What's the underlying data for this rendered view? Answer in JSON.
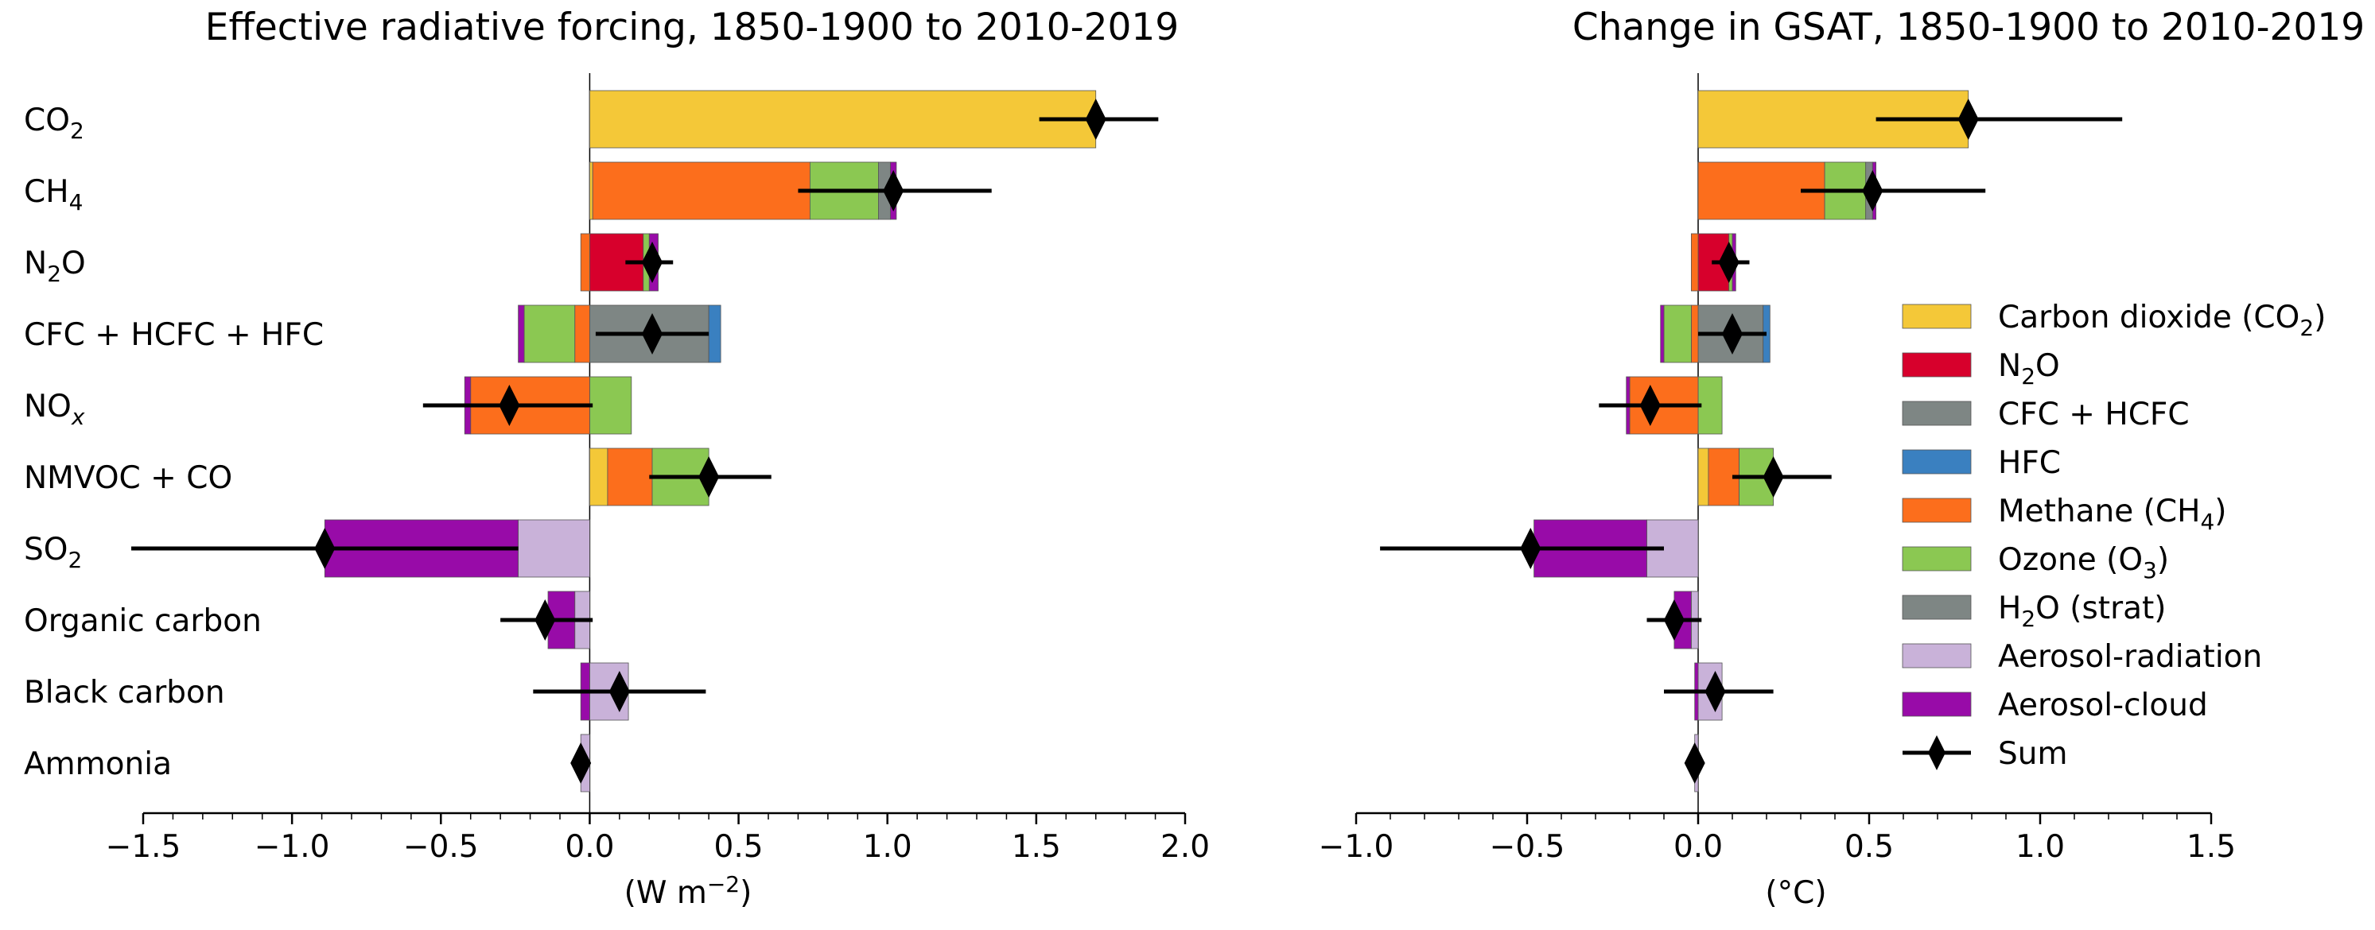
{
  "colors": {
    "co2": "#f4c838",
    "n2o": "#d7002c",
    "cfc": "#7e8684",
    "hfc": "#3a80c0",
    "ch4": "#fc6e1c",
    "o3": "#8bc852",
    "h2o": "#7e8684",
    "aer_rad": "#c9b2d9",
    "aer_cloud": "#980ba8",
    "sum": "#000000"
  },
  "legend": [
    {
      "key": "co2",
      "label": "Carbon dioxide (CO",
      "sub": "2",
      "after": ")"
    },
    {
      "key": "n2o",
      "label": "N",
      "sub": "2",
      "after": "O"
    },
    {
      "key": "cfc",
      "label": "CFC + HCFC",
      "sub": "",
      "after": ""
    },
    {
      "key": "hfc",
      "label": "HFC",
      "sub": "",
      "after": ""
    },
    {
      "key": "ch4",
      "label": "Methane (CH",
      "sub": "4",
      "after": ")"
    },
    {
      "key": "o3",
      "label": "Ozone (O",
      "sub": "3",
      "after": ")"
    },
    {
      "key": "h2o",
      "label": "H",
      "sub": "2",
      "after": "O (strat)"
    },
    {
      "key": "aer_rad",
      "label": "Aerosol-radiation",
      "sub": "",
      "after": ""
    },
    {
      "key": "aer_cloud",
      "label": "Aerosol-cloud",
      "sub": "",
      "after": ""
    },
    {
      "key": "sum",
      "label": "Sum",
      "sub": "",
      "after": "",
      "marker": true
    }
  ],
  "chart_data": [
    {
      "type": "bar",
      "orientation": "horizontal-stacked",
      "title": "Effective radiative forcing,  1850-1900 to 2010-2019",
      "xlabel": "(W m",
      "xlabel_sup": "−2",
      "xlabel_after": ")",
      "xlim": [
        -1.5,
        2.0
      ],
      "xticks": [
        -1.5,
        -1.0,
        -0.5,
        0.0,
        0.5,
        1.0,
        1.5,
        2.0
      ],
      "xtick_labels": [
        "−1.5",
        "−1.0",
        "−0.5",
        "0.0",
        "0.5",
        "1.0",
        "1.5",
        "2.0"
      ],
      "categories": [
        {
          "label": "CO",
          "sub": "2",
          "after": "",
          "italic_sub": false
        },
        {
          "label": "CH",
          "sub": "4",
          "after": "",
          "italic_sub": false
        },
        {
          "label": "N",
          "sub": "2",
          "after": "O",
          "italic_sub": false
        },
        {
          "label": "CFC + HCFC + HFC",
          "sub": "",
          "after": "",
          "italic_sub": false
        },
        {
          "label": "NO",
          "sub": "x",
          "after": "",
          "italic_sub": true
        },
        {
          "label": "NMVOC + CO",
          "sub": "",
          "after": "",
          "italic_sub": false
        },
        {
          "label": "SO",
          "sub": "2",
          "after": "",
          "italic_sub": false
        },
        {
          "label": "Organic carbon",
          "sub": "",
          "after": "",
          "italic_sub": false
        },
        {
          "label": "Black carbon",
          "sub": "",
          "after": "",
          "italic_sub": false
        },
        {
          "label": "Ammonia",
          "sub": "",
          "after": "",
          "italic_sub": false
        }
      ],
      "segments": [
        {
          "pos": [
            [
              "co2",
              1.7
            ]
          ],
          "neg": []
        },
        {
          "pos": [
            [
              "co2",
              0.01
            ],
            [
              "ch4",
              0.73
            ],
            [
              "o3",
              0.23
            ],
            [
              "h2o",
              0.04
            ],
            [
              "aer_cloud",
              0.02
            ]
          ],
          "neg": []
        },
        {
          "pos": [
            [
              "n2o",
              0.18
            ],
            [
              "o3",
              0.02
            ],
            [
              "aer_cloud",
              0.03
            ]
          ],
          "neg": [
            [
              "ch4",
              -0.03
            ]
          ]
        },
        {
          "pos": [
            [
              "cfc",
              0.4
            ],
            [
              "hfc",
              0.04
            ]
          ],
          "neg": [
            [
              "ch4",
              -0.05
            ],
            [
              "o3",
              -0.17
            ],
            [
              "aer_cloud",
              -0.02
            ]
          ]
        },
        {
          "pos": [
            [
              "o3",
              0.14
            ]
          ],
          "neg": [
            [
              "ch4",
              -0.4
            ],
            [
              "aer_cloud",
              -0.02
            ]
          ]
        },
        {
          "pos": [
            [
              "co2",
              0.06
            ],
            [
              "ch4",
              0.15
            ],
            [
              "o3",
              0.19
            ]
          ],
          "neg": []
        },
        {
          "pos": [],
          "neg": [
            [
              "aer_rad",
              -0.24
            ],
            [
              "aer_cloud",
              -0.65
            ]
          ]
        },
        {
          "pos": [],
          "neg": [
            [
              "aer_rad",
              -0.05
            ],
            [
              "aer_cloud",
              -0.09
            ]
          ]
        },
        {
          "pos": [
            [
              "aer_rad",
              0.13
            ]
          ],
          "neg": [
            [
              "aer_cloud",
              -0.03
            ]
          ]
        },
        {
          "pos": [],
          "neg": [
            [
              "aer_rad",
              -0.03
            ]
          ]
        }
      ],
      "sum": [
        1.7,
        1.02,
        0.21,
        0.21,
        -0.27,
        0.4,
        -0.89,
        -0.15,
        0.1,
        -0.03
      ],
      "err_low": [
        1.51,
        0.7,
        0.12,
        0.02,
        -0.56,
        0.2,
        -1.54,
        -0.3,
        -0.19,
        -0.03
      ],
      "err_high": [
        1.91,
        1.35,
        0.28,
        0.4,
        0.01,
        0.61,
        -0.24,
        0.01,
        0.39,
        -0.03
      ]
    },
    {
      "type": "bar",
      "orientation": "horizontal-stacked",
      "title": "Change in GSAT, 1850-1900 to 2010-2019",
      "xlabel": "(°C)",
      "xlim": [
        -1.0,
        1.5
      ],
      "xticks": [
        -1.0,
        -0.5,
        0.0,
        0.5,
        1.0,
        1.5
      ],
      "xtick_labels": [
        "−1.0",
        "−0.5",
        "0.0",
        "0.5",
        "1.0",
        "1.5"
      ],
      "segments": [
        {
          "pos": [
            [
              "co2",
              0.79
            ]
          ],
          "neg": []
        },
        {
          "pos": [
            [
              "ch4",
              0.37
            ],
            [
              "o3",
              0.12
            ],
            [
              "h2o",
              0.02
            ],
            [
              "aer_cloud",
              0.01
            ]
          ],
          "neg": []
        },
        {
          "pos": [
            [
              "n2o",
              0.09
            ],
            [
              "o3",
              0.01
            ],
            [
              "aer_cloud",
              0.01
            ]
          ],
          "neg": [
            [
              "ch4",
              -0.02
            ]
          ]
        },
        {
          "pos": [
            [
              "cfc",
              0.19
            ],
            [
              "hfc",
              0.02
            ]
          ],
          "neg": [
            [
              "ch4",
              -0.02
            ],
            [
              "o3",
              -0.08
            ],
            [
              "aer_cloud",
              -0.01
            ]
          ]
        },
        {
          "pos": [
            [
              "o3",
              0.07
            ]
          ],
          "neg": [
            [
              "ch4",
              -0.2
            ],
            [
              "aer_cloud",
              -0.01
            ]
          ]
        },
        {
          "pos": [
            [
              "co2",
              0.03
            ],
            [
              "ch4",
              0.09
            ],
            [
              "o3",
              0.1
            ]
          ],
          "neg": []
        },
        {
          "pos": [],
          "neg": [
            [
              "aer_rad",
              -0.15
            ],
            [
              "aer_cloud",
              -0.33
            ]
          ]
        },
        {
          "pos": [],
          "neg": [
            [
              "aer_rad",
              -0.02
            ],
            [
              "aer_cloud",
              -0.05
            ]
          ]
        },
        {
          "pos": [
            [
              "aer_rad",
              0.07
            ]
          ],
          "neg": [
            [
              "aer_cloud",
              -0.01
            ]
          ]
        },
        {
          "pos": [],
          "neg": [
            [
              "aer_rad",
              -0.01
            ]
          ]
        }
      ],
      "sum": [
        0.79,
        0.51,
        0.09,
        0.1,
        -0.14,
        0.22,
        -0.49,
        -0.07,
        0.05,
        -0.01
      ],
      "err_low": [
        0.52,
        0.3,
        0.04,
        0.0,
        -0.29,
        0.1,
        -0.93,
        -0.15,
        -0.1,
        -0.01
      ],
      "err_high": [
        1.24,
        0.84,
        0.15,
        0.2,
        0.01,
        0.39,
        -0.1,
        0.01,
        0.22,
        -0.01
      ]
    }
  ]
}
